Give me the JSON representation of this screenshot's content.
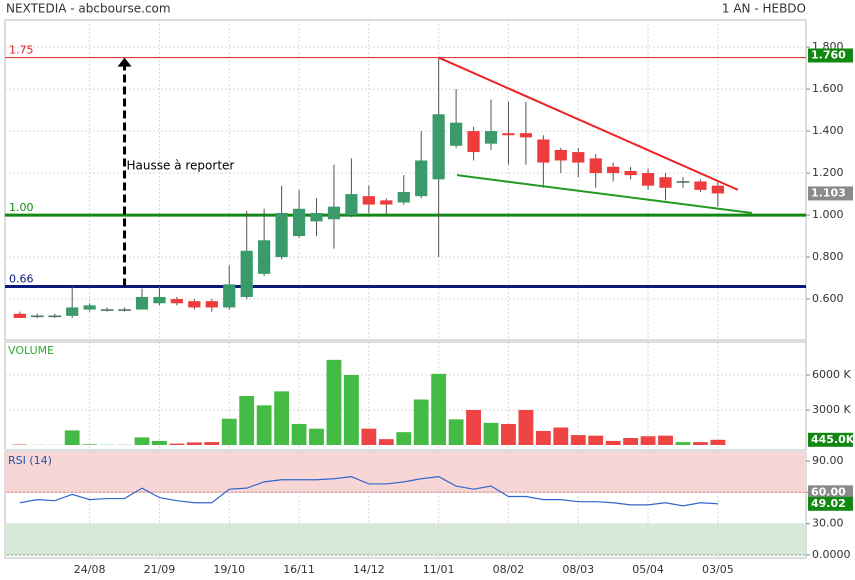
{
  "header": {
    "title": "NEXTEDIA - abcbourse.com",
    "period": "1 AN - HEBDO"
  },
  "chart_data": [
    {
      "type": "candlestick",
      "categories": [
        null,
        null,
        null,
        null,
        "24/08",
        null,
        null,
        null,
        "21/09",
        null,
        null,
        null,
        "19/10",
        null,
        null,
        null,
        "16/11",
        null,
        null,
        null,
        "14/12",
        null,
        null,
        null,
        "11/01",
        null,
        null,
        null,
        "08/02",
        null,
        null,
        null,
        "08/03",
        null,
        null,
        null,
        "05/04",
        null,
        null,
        null,
        "03/05"
      ],
      "open": [
        0.53,
        0.52,
        0.52,
        0.52,
        0.55,
        0.55,
        0.55,
        0.55,
        0.58,
        0.6,
        0.59,
        0.59,
        0.56,
        0.61,
        0.72,
        0.8,
        0.9,
        0.97,
        0.98,
        1.0,
        1.09,
        1.07,
        1.06,
        1.09,
        1.17,
        1.33,
        1.4,
        1.34,
        1.39,
        1.39,
        1.36,
        1.31,
        1.3,
        1.27,
        1.23,
        1.21,
        1.2,
        1.18,
        1.16,
        1.16,
        1.14
      ],
      "high": [
        0.54,
        0.53,
        0.53,
        0.66,
        0.58,
        0.56,
        0.56,
        0.65,
        0.66,
        0.61,
        0.6,
        0.6,
        0.76,
        1.02,
        1.03,
        1.14,
        1.12,
        1.08,
        1.24,
        1.27,
        1.14,
        1.08,
        1.19,
        1.4,
        1.75,
        1.6,
        1.42,
        1.55,
        1.54,
        1.54,
        1.38,
        1.32,
        1.32,
        1.29,
        1.25,
        1.23,
        1.22,
        1.2,
        1.18,
        1.17,
        1.16
      ],
      "low": [
        0.51,
        0.51,
        0.51,
        0.51,
        0.54,
        0.54,
        0.54,
        0.55,
        0.57,
        0.57,
        0.55,
        0.54,
        0.55,
        0.6,
        0.71,
        0.79,
        0.89,
        0.9,
        0.84,
        0.99,
        1.01,
        1.0,
        1.05,
        1.08,
        0.8,
        1.32,
        1.26,
        1.31,
        1.24,
        1.24,
        1.13,
        1.2,
        1.18,
        1.13,
        1.16,
        1.17,
        1.12,
        1.07,
        1.13,
        1.11,
        1.04
      ],
      "close": [
        0.51,
        0.52,
        0.52,
        0.56,
        0.57,
        0.55,
        0.55,
        0.61,
        0.61,
        0.58,
        0.56,
        0.56,
        0.67,
        0.83,
        0.88,
        1.01,
        1.03,
        1.01,
        1.04,
        1.1,
        1.05,
        1.05,
        1.11,
        1.26,
        1.48,
        1.44,
        1.3,
        1.4,
        1.38,
        1.37,
        1.25,
        1.26,
        1.25,
        1.2,
        1.2,
        1.19,
        1.14,
        1.13,
        1.16,
        1.12,
        1.103
      ],
      "up_color": "#3a9a6a",
      "down_color": "#ee3b3b",
      "xlim": [
        -0.85,
        45.05
      ],
      "ylim": [
        0.405,
        1.929
      ],
      "yticks": [
        {
          "value": 0.6,
          "label": "0.600"
        },
        {
          "value": 0.8,
          "label": "0.800"
        },
        {
          "value": 1.0,
          "label": "1.000"
        },
        {
          "value": 1.2,
          "label": "1.200"
        },
        {
          "value": 1.4,
          "label": "1.400"
        },
        {
          "value": 1.6,
          "label": "1.600"
        },
        {
          "value": 1.8,
          "label": "1.800"
        }
      ],
      "grid": true,
      "levels": [
        {
          "value": 1.75,
          "label": "1.75",
          "color": "#dd2222",
          "width": 1
        },
        {
          "value": 1.0,
          "label": "1.00",
          "color": "#118811",
          "width": 3
        },
        {
          "value": 0.66,
          "label": "0.66",
          "color": "#0a1a7a",
          "width": 3
        }
      ],
      "badges": [
        {
          "value": 1.76,
          "label": "1.760",
          "color": "#118811"
        },
        {
          "value": 1.103,
          "label": "1.103",
          "color": "#8a8a8a"
        }
      ],
      "trendlines": [
        {
          "x": [
            24,
            41.15
          ],
          "y": [
            1.75,
            1.12
          ],
          "color": "#ee2222"
        },
        {
          "x": [
            25.05,
            41.95
          ],
          "y": [
            1.19,
            1.01
          ],
          "color": "#229922"
        }
      ],
      "arrow": {
        "text": "Hausse à reporter",
        "x": 6,
        "y": [
          0.66,
          1.75
        ]
      }
    },
    {
      "type": "volume",
      "title": "VOLUME",
      "title_color": "#33aa33",
      "values": [
        40,
        15,
        15,
        1250,
        60,
        20,
        20,
        650,
        350,
        120,
        220,
        250,
        2250,
        4200,
        3400,
        4600,
        1800,
        1400,
        7300,
        6000,
        1400,
        500,
        1100,
        3900,
        6100,
        2200,
        3000,
        1900,
        1800,
        3000,
        1200,
        1500,
        850,
        800,
        350,
        600,
        750,
        800,
        250,
        250,
        445
      ],
      "up_color": "#44bb44",
      "down_color": "#ee4444",
      "xlim": [
        -0.85,
        45.05
      ],
      "ylim": [
        -430,
        8830
      ],
      "yticks": [
        {
          "value": 3000,
          "label": "3000 K"
        },
        {
          "value": 6000,
          "label": "6000 K"
        }
      ],
      "grid": true,
      "badge": {
        "value": 445,
        "label": "445.0K",
        "color": "#118811"
      }
    },
    {
      "type": "rsi",
      "title": "RSI (14)",
      "title_color": "#2255aa",
      "values": [
        50,
        53,
        52,
        58,
        53,
        54,
        54,
        64,
        55,
        52,
        50,
        50,
        63,
        64,
        70,
        72,
        72,
        72,
        73,
        75,
        68,
        68,
        70,
        73,
        75,
        66,
        63,
        66,
        56,
        56,
        53,
        53,
        51,
        51,
        50,
        48,
        48,
        50,
        47,
        50,
        49.02
      ],
      "color": "#3366cc",
      "xlim": [
        -0.85,
        45.05
      ],
      "ylim": [
        -2.9,
        98.6
      ],
      "yticks": [
        {
          "value": 0,
          "label": "0.0000"
        },
        {
          "value": 30,
          "label": "30.00"
        },
        {
          "value": 60,
          "label": "60.00"
        },
        {
          "value": 90,
          "label": "90.00"
        }
      ],
      "grid": true,
      "bands": [
        {
          "from": 60,
          "to": 100,
          "color": "#f9d6d6",
          "line": "#e08080"
        },
        {
          "from": 0,
          "to": 30,
          "color": "#d7ead7",
          "line": "#80b080"
        }
      ],
      "badges": [
        {
          "value": 60,
          "label": "60.00",
          "color": "#8a8a8a"
        },
        {
          "value": 49.02,
          "label": "49.02",
          "color": "#118811"
        }
      ]
    }
  ]
}
